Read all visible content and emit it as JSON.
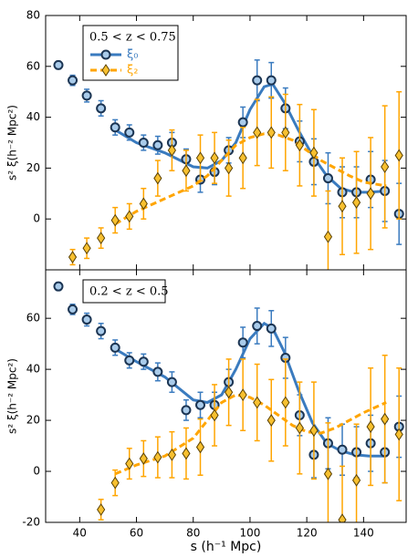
{
  "chart_data": [
    {
      "type": "errorbar",
      "annotation": "0.5 < z < 0.75",
      "ylabel": "s² ξ(h⁻² Mpc²)",
      "xlim": [
        28,
        155
      ],
      "ylim": [
        -20,
        80
      ],
      "yticks": [
        0,
        20,
        40,
        60,
        80
      ],
      "legend": "upper left",
      "series": [
        {
          "name": "ξ₀",
          "color": "#3a7bbf",
          "marker": "circle",
          "linestyle": "solid",
          "x": [
            32.5,
            37.5,
            42.5,
            47.5,
            52.5,
            57.5,
            62.5,
            67.5,
            72.5,
            77.5,
            82.5,
            87.5,
            92.5,
            97.5,
            102.5,
            107.5,
            112.5,
            117.5,
            122.5,
            127.5,
            132.5,
            137.5,
            142.5,
            147.5,
            152.5
          ],
          "values": [
            60.5,
            54.5,
            48.5,
            43.5,
            36,
            34,
            30,
            29,
            30,
            23.5,
            15.5,
            18.5,
            27,
            38,
            54.5,
            54.5,
            43.5,
            30.5,
            22.5,
            16,
            10.5,
            10.5,
            15.5,
            11,
            2
          ],
          "errors": [
            1.5,
            2,
            2.5,
            3,
            3,
            3,
            3,
            3.5,
            4,
            4,
            5,
            5,
            5,
            6,
            8,
            7,
            8,
            8,
            9,
            10,
            10,
            10,
            11,
            12,
            12
          ],
          "model_x": [
            52.5,
            60,
            70,
            80,
            85,
            90,
            95,
            100,
            105,
            108,
            112,
            117,
            122,
            127,
            132,
            137,
            142,
            148
          ],
          "model_values": [
            35,
            30,
            26,
            20.5,
            20,
            23,
            30,
            43,
            52,
            53,
            46,
            35,
            25,
            17,
            12,
            10.5,
            10.5,
            11
          ]
        },
        {
          "name": "ξ₂",
          "color": "#ffa500",
          "marker": "diamond",
          "linestyle": "dashed",
          "x": [
            37.5,
            42.5,
            47.5,
            52.5,
            57.5,
            62.5,
            67.5,
            72.5,
            77.5,
            82.5,
            87.5,
            92.5,
            97.5,
            102.5,
            107.5,
            112.5,
            117.5,
            122.5,
            127.5,
            132.5,
            137.5,
            142.5,
            147.5,
            152.5
          ],
          "values": [
            -15,
            -11.5,
            -7.5,
            -0.5,
            1,
            6,
            16,
            27,
            19,
            24,
            24,
            20,
            24,
            34,
            34,
            34,
            29,
            26,
            -7,
            5,
            6.5,
            10,
            20.5,
            25
          ],
          "errors": [
            3,
            4,
            4,
            5,
            5,
            6,
            7,
            8,
            8,
            9,
            10,
            11,
            12,
            13,
            14,
            15,
            16,
            17,
            18,
            19,
            20,
            22,
            24,
            25
          ],
          "model_x": [
            52.5,
            60,
            70,
            80,
            85,
            90,
            95,
            100,
            105,
            110,
            115,
            120,
            125,
            130,
            135,
            140,
            148
          ],
          "model_values": [
            -2,
            3,
            8,
            13,
            17,
            23,
            29,
            32,
            33.5,
            33,
            31,
            27,
            23,
            20,
            17,
            14.5,
            13
          ]
        }
      ]
    },
    {
      "type": "errorbar",
      "annotation": "0.2 < z < 0.5",
      "ylabel": "s² ξ(h⁻² Mpc²)",
      "xlabel": "s (h⁻¹ Mpc)",
      "xlim": [
        28,
        155
      ],
      "ylim": [
        -20,
        79
      ],
      "xticks": [
        40,
        60,
        80,
        100,
        120,
        140
      ],
      "yticks": [
        -20,
        0,
        20,
        40,
        60
      ],
      "series": [
        {
          "color": "#3a7bbf",
          "marker": "circle",
          "linestyle": "solid",
          "x": [
            32.5,
            37.5,
            42.5,
            47.5,
            52.5,
            57.5,
            62.5,
            67.5,
            72.5,
            77.5,
            82.5,
            87.5,
            92.5,
            97.5,
            102.5,
            107.5,
            112.5,
            117.5,
            122.5,
            127.5,
            132.5,
            137.5,
            142.5,
            147.5,
            152.5
          ],
          "values": [
            72.5,
            63.5,
            59.5,
            55,
            48.5,
            43.5,
            43,
            39,
            35,
            24,
            26,
            26,
            35,
            50.5,
            57,
            56,
            44.5,
            22,
            6.5,
            11,
            8.5,
            7.5,
            11,
            7.5,
            17.5
          ],
          "errors": [
            1.5,
            2,
            2.5,
            3,
            3,
            3,
            3,
            3.5,
            4,
            4,
            5,
            5,
            5,
            6,
            7,
            7,
            8,
            8,
            9,
            10,
            10,
            10,
            11,
            12,
            12
          ],
          "model_x": [
            52.5,
            60,
            70,
            80,
            85,
            90,
            95,
            100,
            105,
            108,
            112,
            117,
            122,
            127,
            132,
            137,
            142,
            148
          ],
          "model_values": [
            48,
            43,
            37,
            28,
            27,
            30,
            40,
            52,
            58,
            56,
            47,
            32,
            19,
            11,
            8,
            6.5,
            6,
            6
          ]
        },
        {
          "color": "#ffa500",
          "marker": "diamond",
          "linestyle": "dashed",
          "x": [
            47.5,
            52.5,
            57.5,
            62.5,
            67.5,
            72.5,
            77.5,
            82.5,
            87.5,
            92.5,
            97.5,
            102.5,
            107.5,
            112.5,
            117.5,
            122.5,
            127.5,
            132.5,
            137.5,
            142.5,
            147.5,
            152.5
          ],
          "values": [
            -15,
            -4.5,
            3,
            5,
            5.5,
            6.5,
            7,
            9.5,
            22,
            31,
            30,
            27,
            20,
            27,
            17,
            16,
            -1,
            -19,
            -3.5,
            17.5,
            20.5,
            14.5
          ],
          "errors": [
            4,
            5,
            6,
            7,
            8,
            9,
            10,
            11,
            12,
            13,
            14,
            15,
            16,
            17,
            18,
            19,
            20,
            21,
            22,
            23,
            25,
            26
          ],
          "model_x": [
            52.5,
            60,
            70,
            80,
            85,
            90,
            95,
            100,
            105,
            110,
            115,
            120,
            125,
            130,
            135,
            140,
            148
          ],
          "model_values": [
            -1,
            2.5,
            6,
            13,
            20,
            27,
            30,
            29,
            26,
            22,
            18,
            15.5,
            15,
            17,
            20,
            23,
            27
          ]
        }
      ]
    }
  ]
}
